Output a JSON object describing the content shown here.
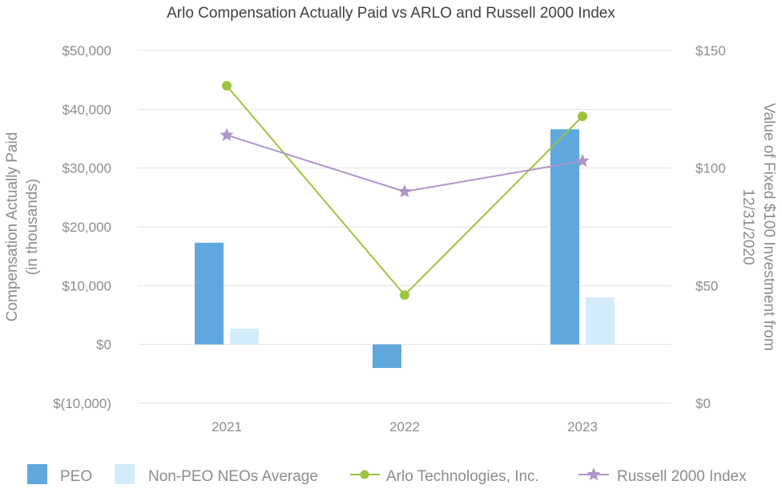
{
  "chart_data": {
    "type": "bar",
    "title": "Arlo Compensation Actually Paid vs ARLO and Russell 2000 Index",
    "categories": [
      "2021",
      "2022",
      "2023"
    ],
    "ylabel_left_line1": "Compensation Actually Paid",
    "ylabel_left_line2": "(in thousands)",
    "ylabel_right_line1": "Value of Fixed $100 Investment from",
    "ylabel_right_line2": "12/31/2020",
    "ylim_left": [
      -10000,
      50000
    ],
    "ylim_right": [
      0,
      150
    ],
    "left_ticks": [
      {
        "value": 50000,
        "label": "$50,000"
      },
      {
        "value": 40000,
        "label": "$40,000"
      },
      {
        "value": 30000,
        "label": "$30,000"
      },
      {
        "value": 20000,
        "label": "$20,000"
      },
      {
        "value": 10000,
        "label": "$10,000"
      },
      {
        "value": 0,
        "label": "$0"
      },
      {
        "value": -10000,
        "label": "$(10,000)"
      }
    ],
    "right_ticks": [
      {
        "value": 150,
        "label": "$150"
      },
      {
        "value": 100,
        "label": "$100"
      },
      {
        "value": 50,
        "label": "$50"
      },
      {
        "value": 0,
        "label": "$0"
      }
    ],
    "grid": true,
    "legend_position": "bottom",
    "bar_series": [
      {
        "name": "PEO",
        "color": "#5ea8de",
        "values": [
          17300,
          -4000,
          36600
        ]
      },
      {
        "name": "Non-PEO NEOs Average",
        "color": "#d3ecfb",
        "values": [
          2700,
          0,
          8000
        ]
      }
    ],
    "line_series": [
      {
        "name": "Arlo Technologies, Inc.",
        "color": "#9dc43f",
        "marker": "circle",
        "axis": "right",
        "values": [
          135,
          46,
          122
        ]
      },
      {
        "name": "Russell 2000 Index",
        "color": "#ae94cc",
        "marker": "star",
        "axis": "right",
        "values": [
          114,
          90,
          103
        ]
      }
    ]
  }
}
